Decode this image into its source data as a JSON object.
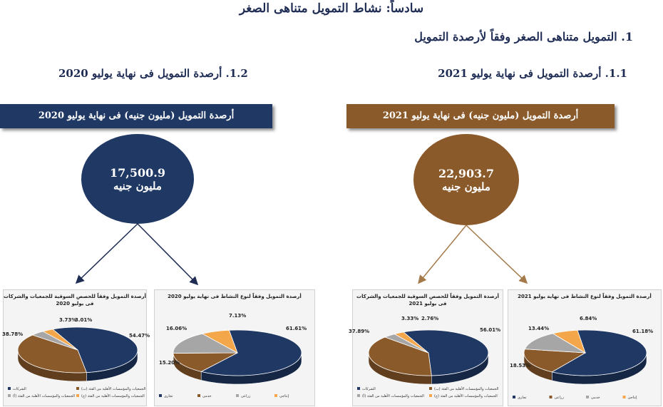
{
  "main_title": "سادساً: نشاط التمويل متناهى الصغر",
  "section_1_title": "1. التمويل متناهى الصغر وفقاً لأرصدة التمويل",
  "left": {
    "subtitle": "1.2. أرصدة التمويل فى نهاية يوليو 2020",
    "banner": "أرصدة التمويل (مليون جنيه) فى نهاية يوليو 2020",
    "value": "17,500.9",
    "unit": "مليون جنيه",
    "color": "#1f3864"
  },
  "right": {
    "subtitle": "1.1. أرصدة التمويل فى نهاية يوليو 2021",
    "banner": "أرصدة التمويل (مليون جنيه) فى نهاية يوليو 2021",
    "value": "22,903.7",
    "unit": "مليون جنيه",
    "color": "#8b5a2b"
  },
  "chart_data": [
    {
      "type": "pie",
      "title": "أرصدة التمويل وفقاً للحصص السوقية للجمعيات والشركات فى يوليو 2020",
      "values": [
        54.47,
        38.78,
        3.73,
        3.01
      ],
      "labels": [
        "54.47%",
        "38.78%",
        "3.73%",
        "3.01%"
      ],
      "legend": [
        "الشركات",
        "الجمعيات والمؤسسات الأهلية من الفئة (ب)",
        "الجمعيات والمؤسسات الأهلية من الفئة (أ)",
        "الجمعيات والمؤسسات الأهلية من الفئة (ج)"
      ],
      "colors": [
        "#1f3864",
        "#8b5a2b",
        "#a6a6a6",
        "#f4a64a"
      ]
    },
    {
      "type": "pie",
      "title": "أرصدة التمويل وفقاً لنوع النشاط فى نهاية يوليو 2020",
      "values": [
        61.61,
        15.2,
        16.06,
        7.13
      ],
      "labels": [
        "61.61%",
        "15.20%",
        "16.06%",
        "7.13%"
      ],
      "legend": [
        "تجارى",
        "خدمى",
        "زراعى",
        "إنتاجى"
      ],
      "colors": [
        "#1f3864",
        "#8b5a2b",
        "#a6a6a6",
        "#f4a64a"
      ]
    },
    {
      "type": "pie",
      "title": "أرصدة التمويل وفقاً للحصص السوقية للجمعيات والشركات فى يوليو 2021",
      "values": [
        56.01,
        37.89,
        3.33,
        2.76
      ],
      "labels": [
        "56.01%",
        "37.89%",
        "3.33%",
        "2.76%"
      ],
      "legend": [
        "الشركات",
        "الجمعيات والمؤسسات الأهلية من الفئة (ب)",
        "الجمعيات والمؤسسات الأهلية من الفئة (أ)",
        "الجمعيات والمؤسسات الأهلية من الفئة (ج)"
      ],
      "colors": [
        "#1f3864",
        "#8b5a2b",
        "#a6a6a6",
        "#f4a64a"
      ]
    },
    {
      "type": "pie",
      "title": "أرصدة التمويل وفقاً لنوع النشاط فى نهاية يوليو 2021",
      "values": [
        61.18,
        18.53,
        13.44,
        6.84
      ],
      "labels": [
        "61.18%",
        "18.53%",
        "13.44%",
        "6.84%"
      ],
      "legend": [
        "تجارى",
        "زراعى",
        "خدمى",
        "إنتاجى"
      ],
      "colors": [
        "#1f3864",
        "#8b5a2b",
        "#a6a6a6",
        "#f4a64a"
      ]
    }
  ]
}
